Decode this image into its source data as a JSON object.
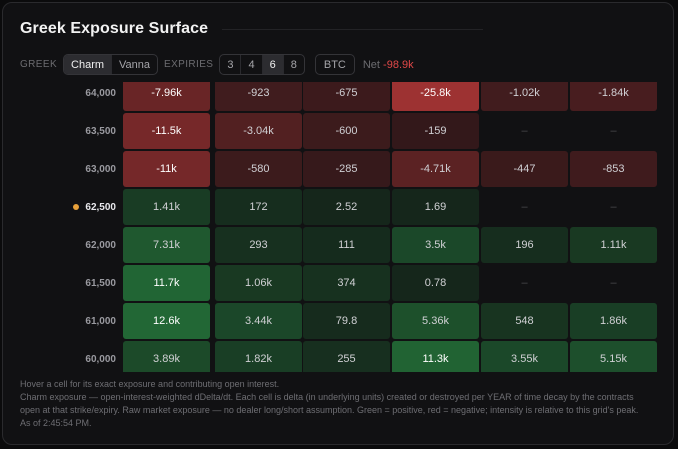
{
  "title": "Greek Exposure Surface",
  "controls": {
    "greek_label": "GREEK",
    "greeks": [
      {
        "label": "Charm",
        "active": true
      },
      {
        "label": "Vanna",
        "active": false
      }
    ],
    "expiries_label": "EXPIRIES",
    "expiries": [
      {
        "label": "3",
        "active": false
      },
      {
        "label": "4",
        "active": false
      },
      {
        "label": "6",
        "active": true
      },
      {
        "label": "8",
        "active": false
      }
    ],
    "asset": "BTC",
    "net_label": "Net",
    "net_value": "-98.9k"
  },
  "colors": {
    "positive": "#2fa84f",
    "negative": "#c93c3c",
    "spot_dot": "#e8a13a",
    "net_negative": "#e04848"
  },
  "grid": {
    "spot_strike": "62,500",
    "rows": [
      {
        "strike": "64,000",
        "cells": [
          {
            "text": "-7.96k",
            "v": -7960
          },
          {
            "text": "-923",
            "v": -923
          },
          {
            "text": "-675",
            "v": -675
          },
          {
            "text": "-25.8k",
            "v": -25800
          },
          {
            "text": "-1.02k",
            "v": -1020
          },
          {
            "text": "-1.84k",
            "v": -1840
          }
        ]
      },
      {
        "strike": "63,500",
        "cells": [
          {
            "text": "-11.5k",
            "v": -11500
          },
          {
            "text": "-3.04k",
            "v": -3040
          },
          {
            "text": "-600",
            "v": -600
          },
          {
            "text": "-159",
            "v": -159
          },
          {
            "text": "–",
            "v": null
          },
          {
            "text": "–",
            "v": null
          }
        ]
      },
      {
        "strike": "63,000",
        "cells": [
          {
            "text": "-11k",
            "v": -11000
          },
          {
            "text": "-580",
            "v": -580
          },
          {
            "text": "-285",
            "v": -285
          },
          {
            "text": "-4.71k",
            "v": -4710
          },
          {
            "text": "-447",
            "v": -447
          },
          {
            "text": "-853",
            "v": -853
          }
        ]
      },
      {
        "strike": "62,500",
        "cells": [
          {
            "text": "1.41k",
            "v": 1410
          },
          {
            "text": "172",
            "v": 172
          },
          {
            "text": "2.52",
            "v": 2.52
          },
          {
            "text": "1.69",
            "v": 1.69
          },
          {
            "text": "–",
            "v": null
          },
          {
            "text": "–",
            "v": null
          }
        ]
      },
      {
        "strike": "62,000",
        "cells": [
          {
            "text": "7.31k",
            "v": 7310
          },
          {
            "text": "293",
            "v": 293
          },
          {
            "text": "111",
            "v": 111
          },
          {
            "text": "3.5k",
            "v": 3500
          },
          {
            "text": "196",
            "v": 196
          },
          {
            "text": "1.11k",
            "v": 1110
          }
        ]
      },
      {
        "strike": "61,500",
        "cells": [
          {
            "text": "11.7k",
            "v": 11700
          },
          {
            "text": "1.06k",
            "v": 1060
          },
          {
            "text": "374",
            "v": 374
          },
          {
            "text": "0.78",
            "v": 0.78
          },
          {
            "text": "–",
            "v": null
          },
          {
            "text": "–",
            "v": null
          }
        ]
      },
      {
        "strike": "61,000",
        "cells": [
          {
            "text": "12.6k",
            "v": 12600
          },
          {
            "text": "3.44k",
            "v": 3440
          },
          {
            "text": "79.8",
            "v": 79.8
          },
          {
            "text": "5.36k",
            "v": 5360
          },
          {
            "text": "548",
            "v": 548
          },
          {
            "text": "1.86k",
            "v": 1860
          }
        ]
      },
      {
        "strike": "60,000",
        "cells": [
          {
            "text": "3.89k",
            "v": 3890
          },
          {
            "text": "1.82k",
            "v": 1820
          },
          {
            "text": "255",
            "v": 255
          },
          {
            "text": "11.3k",
            "v": 11300
          },
          {
            "text": "3.55k",
            "v": 3550
          },
          {
            "text": "5.15k",
            "v": 5150
          }
        ]
      }
    ]
  },
  "footer": {
    "hint": "Hover a cell for its exact exposure and contributing open interest.",
    "description": "Charm exposure — open-interest-weighted dDelta/dt. Each cell is delta (in underlying units) created or destroyed per YEAR of time decay by the contracts open at that strike/expiry. Raw market exposure — no dealer long/short assumption. Green = positive, red = negative; intensity is relative to this grid's peak. As of 2:45:54 PM."
  }
}
